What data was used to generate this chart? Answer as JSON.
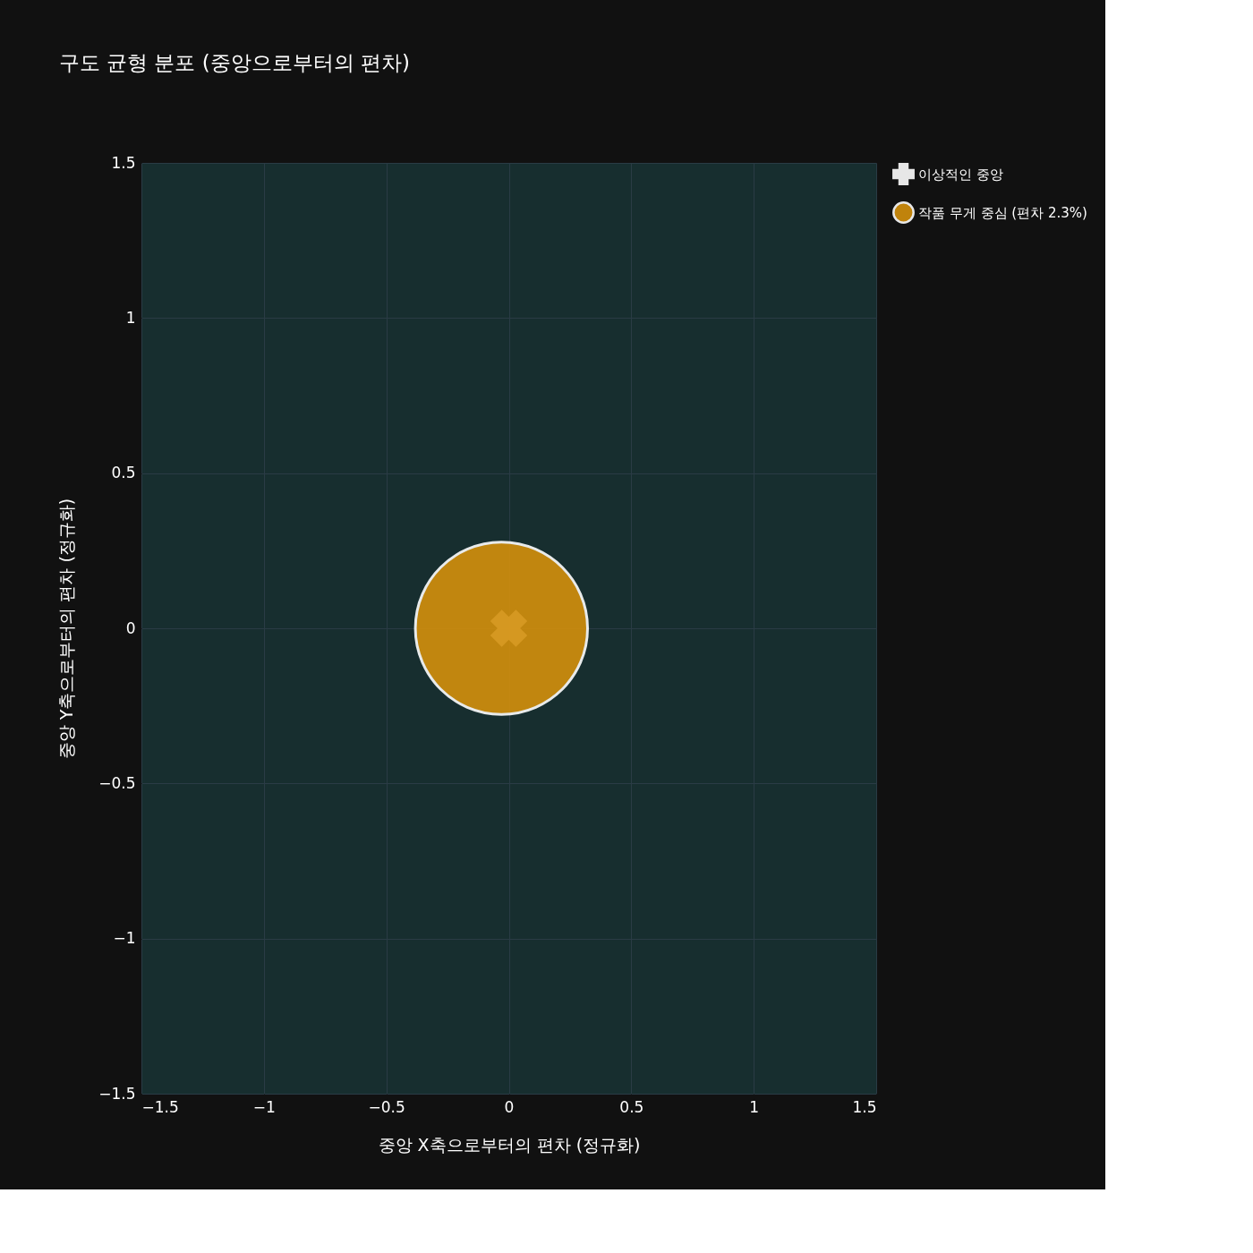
{
  "chart_data": {
    "type": "scatter",
    "title": "구도 균형 분포 (중앙으로부터의 편차)",
    "xlabel": "중앙 X축으로부터의 편차 (정규화)",
    "ylabel": "중앙 Y축으로부터의 편차 (정규화)",
    "xlim": [
      -1.5,
      1.5
    ],
    "ylim": [
      -1.5,
      1.5
    ],
    "xticks": [
      -1.5,
      -1,
      -0.5,
      0,
      0.5,
      1,
      1.5
    ],
    "yticks": [
      -1.5,
      -1,
      -0.5,
      0,
      0.5,
      1,
      1.5
    ],
    "grid": true,
    "legend": "top right",
    "series": [
      {
        "name": "이상적인 중앙",
        "color": "#ffffff",
        "marker": "cross",
        "x": [
          0
        ],
        "values": [
          0
        ]
      },
      {
        "name": "작품 무게 중심 (편차 2.3%)",
        "color": "#d4900c",
        "marker": "circle",
        "x": [
          -0.03
        ],
        "values": [
          0
        ]
      }
    ]
  }
}
